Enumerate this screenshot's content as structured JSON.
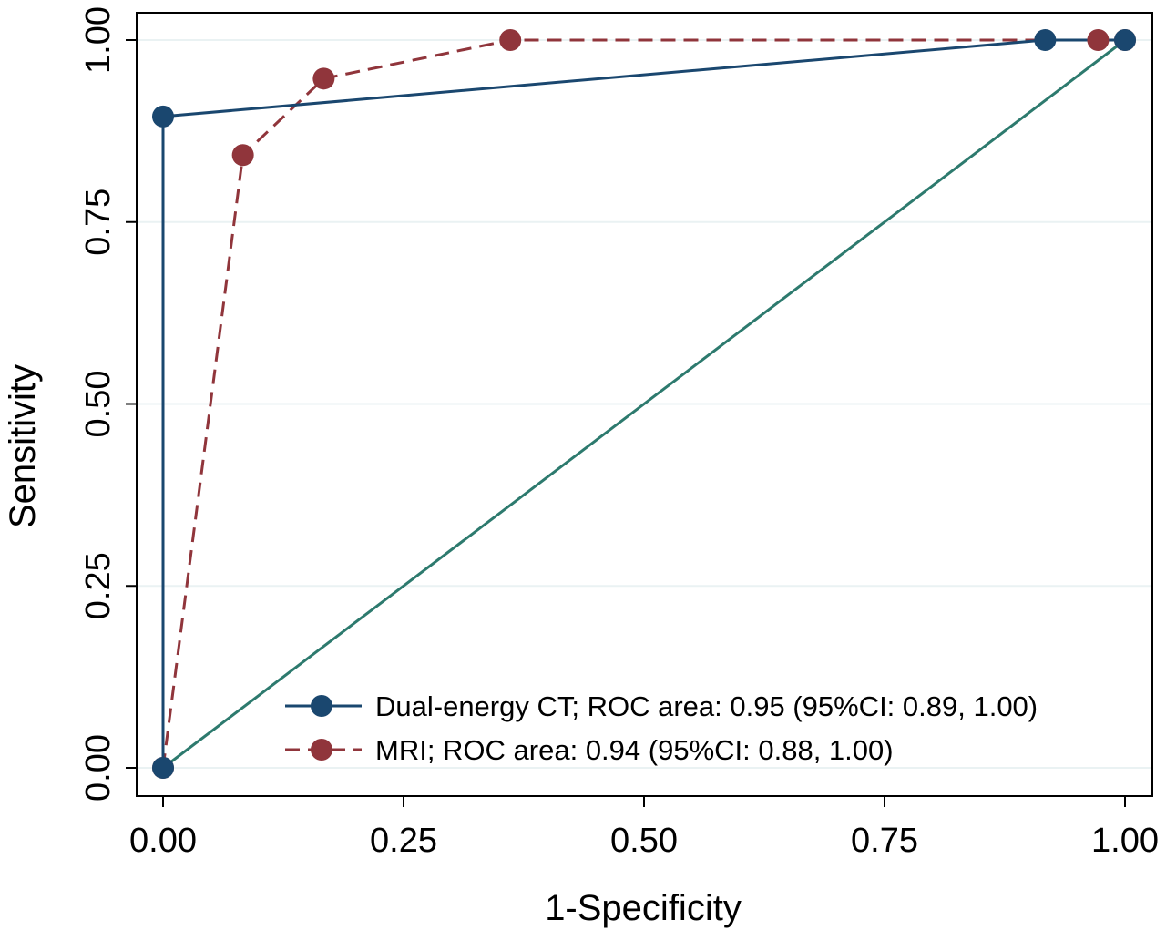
{
  "chart_data": {
    "type": "line",
    "title": "",
    "xlabel": "1-Specificity",
    "ylabel": "Sensitivity",
    "xlim": [
      0,
      1
    ],
    "ylim": [
      0,
      1
    ],
    "xticks": [
      "0.00",
      "0.25",
      "0.50",
      "0.75",
      "1.00"
    ],
    "yticks": [
      "0.00",
      "0.25",
      "0.50",
      "0.75",
      "1.00"
    ],
    "grid": true,
    "legend_position": "bottom-right",
    "series": [
      {
        "name": "Dual-energy CT; ROC area: 0.95 (95%CI: 0.89, 1.00)",
        "color": "#1a476f",
        "line_style": "solid",
        "marker": "circle",
        "x": [
          0.0,
          0.0,
          0.917,
          1.0
        ],
        "y": [
          0.0,
          0.895,
          1.0,
          1.0
        ]
      },
      {
        "name": "MRI; ROC area: 0.94 (95%CI: 0.88, 1.00)",
        "color": "#90353b",
        "line_style": "dashed",
        "marker": "circle",
        "x": [
          0.0,
          0.083,
          0.167,
          0.361,
          0.972,
          1.0
        ],
        "y": [
          0.0,
          0.842,
          0.947,
          1.0,
          1.0,
          1.0
        ]
      },
      {
        "name": "",
        "color": "#2d7a6e",
        "line_style": "solid",
        "marker": "none",
        "x": [
          0.0,
          1.0
        ],
        "y": [
          0.0,
          1.0
        ]
      }
    ]
  }
}
